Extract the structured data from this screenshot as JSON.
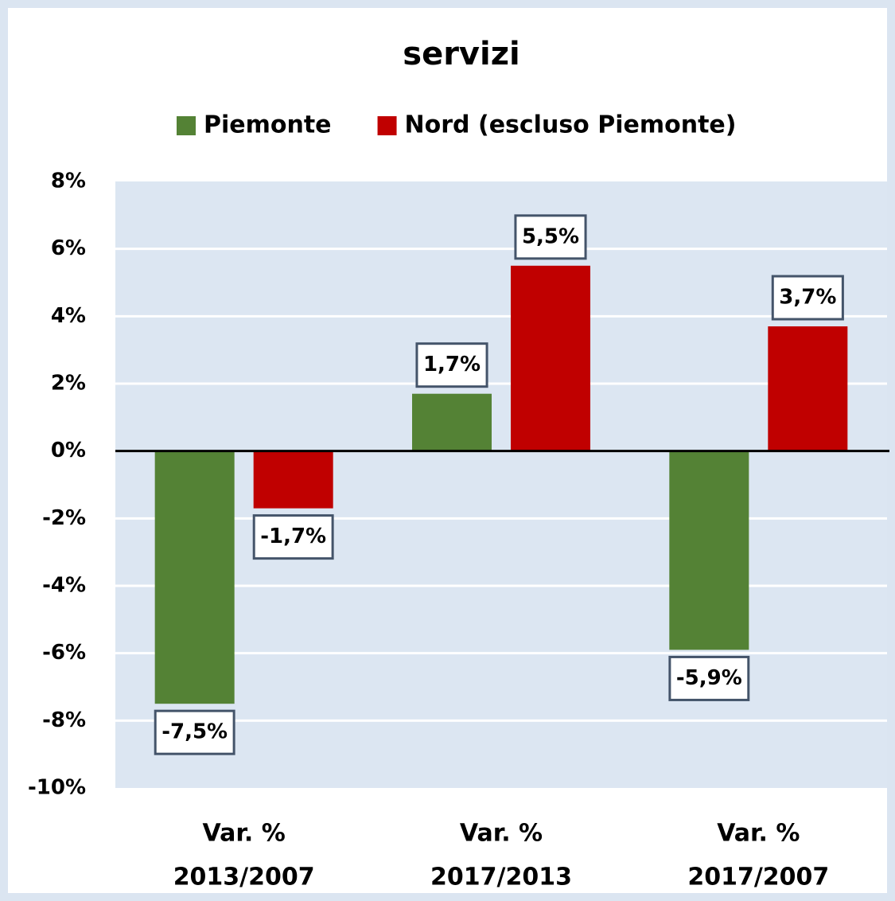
{
  "chart_data": {
    "type": "bar",
    "title": "servizi",
    "categories": [
      [
        "Var. %",
        "2013/2007"
      ],
      [
        "Var. %",
        "2017/2013"
      ],
      [
        "Var. %",
        "2017/2007"
      ]
    ],
    "series": [
      {
        "name": "Piemonte",
        "color": "#548235",
        "values": [
          -7.5,
          1.7,
          -5.9
        ],
        "value_labels": [
          "-7,5%",
          "1,7%",
          "-5,9%"
        ]
      },
      {
        "name": "Nord (escluso Piemonte)",
        "color": "#c00000",
        "values": [
          -1.7,
          5.5,
          3.7
        ],
        "value_labels": [
          "-1,7%",
          "5,5%",
          "3,7%"
        ]
      }
    ],
    "ylim": [
      -10,
      8
    ],
    "yticks": [
      {
        "value": -10,
        "label": "-10%"
      },
      {
        "value": -8,
        "label": "-8%"
      },
      {
        "value": -6,
        "label": "-6%"
      },
      {
        "value": -4,
        "label": "-4%"
      },
      {
        "value": -2,
        "label": "-2%"
      },
      {
        "value": 0,
        "label": "0%"
      },
      {
        "value": 2,
        "label": "2%"
      },
      {
        "value": 4,
        "label": "4%"
      },
      {
        "value": 6,
        "label": "6%"
      },
      {
        "value": 8,
        "label": "8%"
      }
    ],
    "grid": true,
    "legend": "top"
  }
}
